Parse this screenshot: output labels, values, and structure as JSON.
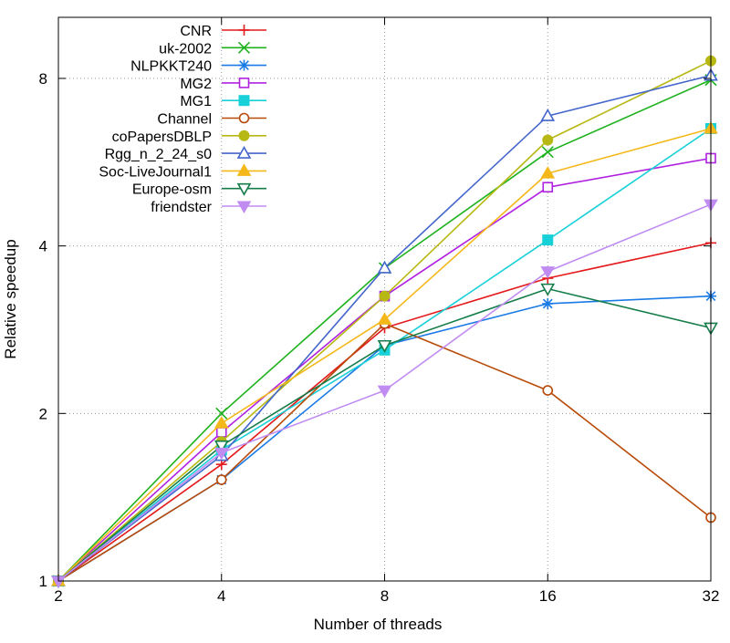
{
  "chart_data": {
    "type": "line",
    "title": "",
    "xlabel": "Number of threads",
    "ylabel": "Relative speedup",
    "x_scale": "log2",
    "y_scale": "log2",
    "xlim": [
      2,
      32
    ],
    "ylim": [
      1,
      10.3
    ],
    "grid": true,
    "legend_position": "top-left",
    "x": [
      2,
      4,
      8,
      16,
      32
    ],
    "x_tick_labels": [
      "2",
      "4",
      "8",
      "16",
      "32"
    ],
    "y_ticks": [
      1,
      2,
      4,
      8
    ],
    "y_tick_labels": [
      "1",
      "2",
      "4",
      "8"
    ],
    "series": [
      {
        "name": "CNR",
        "color": "#e41a1c",
        "marker": "plus",
        "values": [
          1,
          1.62,
          2.85,
          3.5,
          4.05
        ]
      },
      {
        "name": "uk-2002",
        "color": "#1fb21f",
        "marker": "x",
        "values": [
          1,
          2,
          3.65,
          5.9,
          7.95
        ]
      },
      {
        "name": "NLPKKT240",
        "color": "#1a7ae6",
        "marker": "asterisk",
        "values": [
          1,
          1.52,
          2.65,
          3.15,
          3.25
        ]
      },
      {
        "name": "MG2",
        "color": "#b020e0",
        "marker": "square-open",
        "values": [
          1,
          1.85,
          3.25,
          5.1,
          5.75
        ]
      },
      {
        "name": "MG1",
        "color": "#18d0d8",
        "marker": "square-filled",
        "values": [
          1,
          1.72,
          2.6,
          4.1,
          6.5
        ]
      },
      {
        "name": "Channel",
        "color": "#b84a08",
        "marker": "circle-open",
        "values": [
          1,
          1.52,
          2.9,
          2.2,
          1.3
        ]
      },
      {
        "name": "coPapersDBLP",
        "color": "#b8b814",
        "marker": "circle-filled",
        "values": [
          1,
          1.78,
          3.25,
          6.2,
          8.6
        ]
      },
      {
        "name": "Rgg_n_2_24_s0",
        "color": "#4466cc",
        "marker": "triangle-open",
        "values": [
          1,
          1.68,
          3.65,
          6.85,
          8.1
        ]
      },
      {
        "name": "Soc-LiveJournal1",
        "color": "#f5b81a",
        "marker": "triangle-filled",
        "values": [
          1,
          1.92,
          2.95,
          5.4,
          6.5
        ]
      },
      {
        "name": "Europe-osm",
        "color": "#157d4a",
        "marker": "triangle-down-open",
        "values": [
          1,
          1.75,
          2.65,
          3.35,
          2.85
        ]
      },
      {
        "name": "friendster",
        "color": "#c08cf2",
        "marker": "triangle-down-filled",
        "values": [
          1,
          1.7,
          2.2,
          3.6,
          4.75
        ]
      }
    ]
  }
}
